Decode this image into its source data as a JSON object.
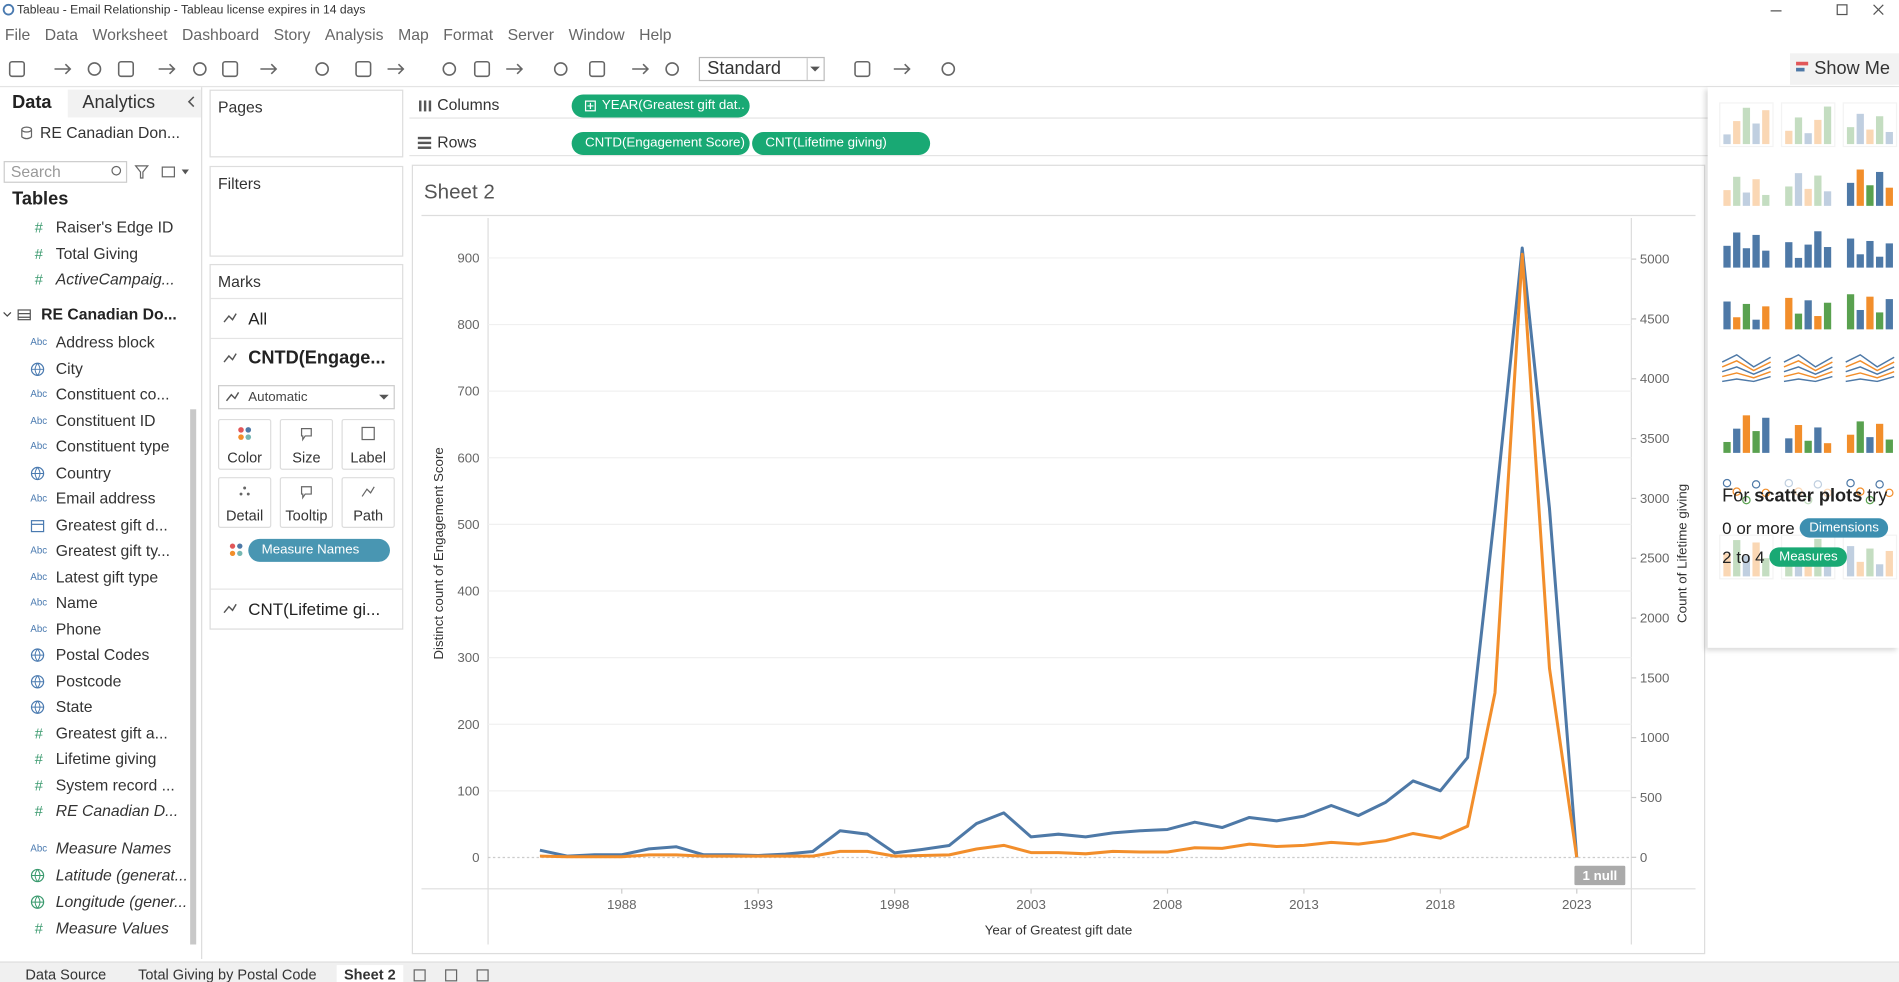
{
  "window": {
    "title": "Tableau - Email Relationship - Tableau license expires in 14 days"
  },
  "menu": [
    "File",
    "Data",
    "Worksheet",
    "Dashboard",
    "Story",
    "Analysis",
    "Map",
    "Format",
    "Server",
    "Window",
    "Help"
  ],
  "toolbar": {
    "fit": "Standard",
    "show_me": "Show Me"
  },
  "data_pane": {
    "tabs": [
      "Data",
      "Analytics"
    ],
    "source": "RE Canadian Don...",
    "search_placeholder": "Search",
    "heading": "Tables",
    "fields": [
      {
        "icon": "#",
        "name": "Raiser's Edge ID"
      },
      {
        "icon": "#",
        "name": "Total Giving"
      },
      {
        "icon": "#",
        "name": "ActiveCampaig...",
        "italic": true
      },
      {
        "kind": "table",
        "name": "RE Canadian Do..."
      },
      {
        "icon": "Abc",
        "name": "Address block"
      },
      {
        "kind": "geo",
        "name": "City"
      },
      {
        "icon": "Abc",
        "name": "Constituent co..."
      },
      {
        "icon": "Abc",
        "name": "Constituent ID"
      },
      {
        "icon": "Abc",
        "name": "Constituent type"
      },
      {
        "kind": "geo",
        "name": "Country"
      },
      {
        "icon": "Abc",
        "name": "Email address"
      },
      {
        "kind": "date",
        "name": "Greatest gift d..."
      },
      {
        "icon": "Abc",
        "name": "Greatest gift ty..."
      },
      {
        "icon": "Abc",
        "name": "Latest gift type"
      },
      {
        "icon": "Abc",
        "name": "Name"
      },
      {
        "icon": "Abc",
        "name": "Phone"
      },
      {
        "kind": "geo",
        "name": "Postal Codes"
      },
      {
        "kind": "geo",
        "name": "Postcode"
      },
      {
        "kind": "geo",
        "name": "State"
      },
      {
        "icon": "#",
        "name": "Greatest gift a..."
      },
      {
        "icon": "#",
        "name": "Lifetime giving"
      },
      {
        "icon": "#",
        "name": "System record ..."
      },
      {
        "icon": "#",
        "name": "RE Canadian D...",
        "italic": true
      }
    ],
    "extra_fields": [
      {
        "icon": "Abc",
        "name": "Measure Names",
        "italic": true
      },
      {
        "kind": "geo",
        "name": "Latitude (generat...",
        "italic": true,
        "measure": true
      },
      {
        "kind": "geo",
        "name": "Longitude (gener...",
        "italic": true,
        "measure": true
      },
      {
        "icon": "#",
        "name": "Measure Values",
        "italic": true
      }
    ]
  },
  "cards": {
    "pages": "Pages",
    "filters": "Filters",
    "marks": {
      "title": "Marks",
      "layers": [
        "All",
        "CNTD(Engage...",
        "CNT(Lifetime gi..."
      ],
      "mark_type": "Automatic",
      "buttons": [
        "Color",
        "Size",
        "Label",
        "Detail",
        "Tooltip",
        "Path"
      ],
      "pill": "Measure Names"
    }
  },
  "shelves": {
    "columns": {
      "label": "Columns",
      "pills": [
        "YEAR(Greatest gift dat.."
      ]
    },
    "rows": {
      "label": "Rows",
      "pills": [
        "CNTD(Engagement Score)",
        "CNT(Lifetime giving)"
      ]
    }
  },
  "chart_data": {
    "type": "line",
    "title": "Sheet 2",
    "xlabel": "Year of Greatest gift date",
    "ylabel": "Distinct count of Engagement Score",
    "y2label": "Count of Lifetime giving",
    "annotation": "1 null",
    "x": [
      1985,
      1986,
      1987,
      1988,
      1989,
      1990,
      1991,
      1992,
      1993,
      1994,
      1995,
      1996,
      1997,
      1998,
      1999,
      2000,
      2001,
      2002,
      2003,
      2004,
      2005,
      2006,
      2007,
      2008,
      2009,
      2010,
      2011,
      2012,
      2013,
      2014,
      2015,
      2016,
      2017,
      2018,
      2019,
      2020,
      2021,
      2022,
      2023
    ],
    "series": [
      {
        "color": "#4e79a7",
        "axis": "y",
        "values": [
          11,
          2,
          4,
          4,
          13,
          16,
          4,
          4,
          3,
          5,
          9,
          40,
          35,
          7,
          12,
          18,
          51,
          67,
          31,
          35,
          31,
          37,
          40,
          42,
          53,
          45,
          60,
          55,
          62,
          78,
          63,
          83,
          115,
          100,
          150,
          520,
          915,
          524,
          0
        ]
      },
      {
        "color": "#f28e2b",
        "axis": "y2",
        "values": [
          10,
          5,
          5,
          5,
          20,
          20,
          10,
          10,
          10,
          10,
          10,
          50,
          50,
          10,
          15,
          20,
          70,
          100,
          40,
          40,
          30,
          50,
          45,
          45,
          80,
          75,
          110,
          90,
          100,
          125,
          110,
          140,
          200,
          160,
          260,
          1375,
          5040,
          1580,
          0
        ]
      }
    ],
    "xlim": [
      1983.1,
      2025
    ],
    "xticks": [
      1988,
      1993,
      1998,
      2003,
      2008,
      2013,
      2018,
      2023
    ],
    "ylim": [
      -47,
      960
    ],
    "yticks": [
      0,
      100,
      200,
      300,
      400,
      500,
      600,
      700,
      800,
      900
    ],
    "y2lim": [
      -263,
      5344
    ],
    "y2ticks": [
      0,
      500,
      1000,
      1500,
      2000,
      2500,
      3000,
      3500,
      4000,
      4500,
      5000
    ],
    "grid": true
  },
  "show_me": {
    "hint_prefix": "For",
    "hint_bold": "scatter plots",
    "hint_suffix": "try",
    "rules": [
      {
        "text": "0 or more",
        "pill": "Dimensions"
      },
      {
        "text": "2 to 4",
        "pill": "Measures"
      }
    ]
  },
  "sheet_tabs": [
    "Data Source",
    "Total Giving by Postal Code",
    "Sheet 2"
  ]
}
